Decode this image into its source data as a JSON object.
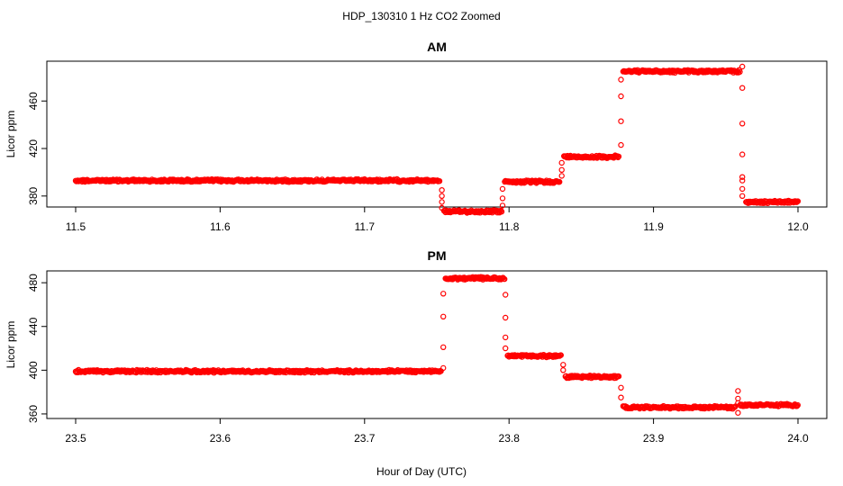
{
  "figure": {
    "title": "HDP_130310  1 Hz CO2 Zoomed",
    "xlabel": "Hour of Day (UTC)"
  },
  "chart_data": [
    {
      "type": "scatter",
      "title": "AM",
      "xlabel": "Hour of Day (UTC)",
      "ylabel": "Licor ppm",
      "xlim": [
        11.5,
        12.0
      ],
      "ylim": [
        370,
        492
      ],
      "xticks": [
        11.5,
        11.6,
        11.7,
        11.8,
        11.9,
        12.0
      ],
      "xtick_labels": [
        "11.5",
        "11.6",
        "11.7",
        "11.8",
        "11.9",
        "12.0"
      ],
      "yticks": [
        380,
        420,
        460
      ],
      "ytick_labels": [
        "380",
        "420",
        "460"
      ],
      "grid": false,
      "marker": "open circle",
      "color": "#ff0000",
      "segments": [
        {
          "x": [
            11.5,
            11.752
          ],
          "y": 393
        },
        {
          "x": [
            11.755,
            11.795
          ],
          "y": 367
        },
        {
          "x": [
            11.797,
            11.835
          ],
          "y": 392
        },
        {
          "x": [
            11.838,
            11.876
          ],
          "y": 413
        },
        {
          "x": [
            11.879,
            11.96
          ],
          "y": 485
        },
        {
          "x": [
            11.964,
            12.0
          ],
          "y": 375
        }
      ],
      "transitions": [
        {
          "x": 11.7535,
          "y": [
            385,
            380,
            375,
            370
          ]
        },
        {
          "x": 11.7955,
          "y": [
            372,
            378,
            386
          ]
        },
        {
          "x": 11.8365,
          "y": [
            397,
            402,
            408
          ]
        },
        {
          "x": 11.8775,
          "y": [
            423,
            443,
            464,
            478
          ]
        },
        {
          "x": 11.9615,
          "y": [
            489,
            471,
            441,
            415,
            396,
            393,
            386,
            380
          ]
        }
      ]
    },
    {
      "type": "scatter",
      "title": "PM",
      "xlabel": "Hour of Day (UTC)",
      "ylabel": "Licor ppm",
      "xlim": [
        23.5,
        24.0
      ],
      "ylim": [
        355,
        490
      ],
      "xticks": [
        23.5,
        23.6,
        23.7,
        23.8,
        23.9,
        24.0
      ],
      "xtick_labels": [
        "23.5",
        "23.6",
        "23.7",
        "23.8",
        "23.9",
        "24.0"
      ],
      "yticks": [
        360,
        400,
        440,
        480
      ],
      "ytick_labels": [
        "360",
        "400",
        "440",
        "480"
      ],
      "grid": false,
      "marker": "open circle",
      "color": "#ff0000",
      "segments": [
        {
          "x": [
            23.5,
            23.753
          ],
          "y": 399
        },
        {
          "x": [
            23.756,
            23.797
          ],
          "y": 484
        },
        {
          "x": [
            23.799,
            23.836
          ],
          "y": 413
        },
        {
          "x": [
            23.839,
            23.876
          ],
          "y": 394
        },
        {
          "x": [
            23.879,
            23.957
          ],
          "y": 366
        },
        {
          "x": [
            23.96,
            24.0
          ],
          "y": 368
        }
      ],
      "transitions": [
        {
          "x": 23.7545,
          "y": [
            402,
            421,
            449,
            470
          ]
        },
        {
          "x": 23.7975,
          "y": [
            469,
            448,
            430,
            420
          ]
        },
        {
          "x": 23.8375,
          "y": [
            405,
            400
          ]
        },
        {
          "x": 23.8775,
          "y": [
            384,
            375
          ]
        },
        {
          "x": 23.9585,
          "y": [
            361,
            381,
            374,
            370
          ]
        }
      ]
    }
  ]
}
